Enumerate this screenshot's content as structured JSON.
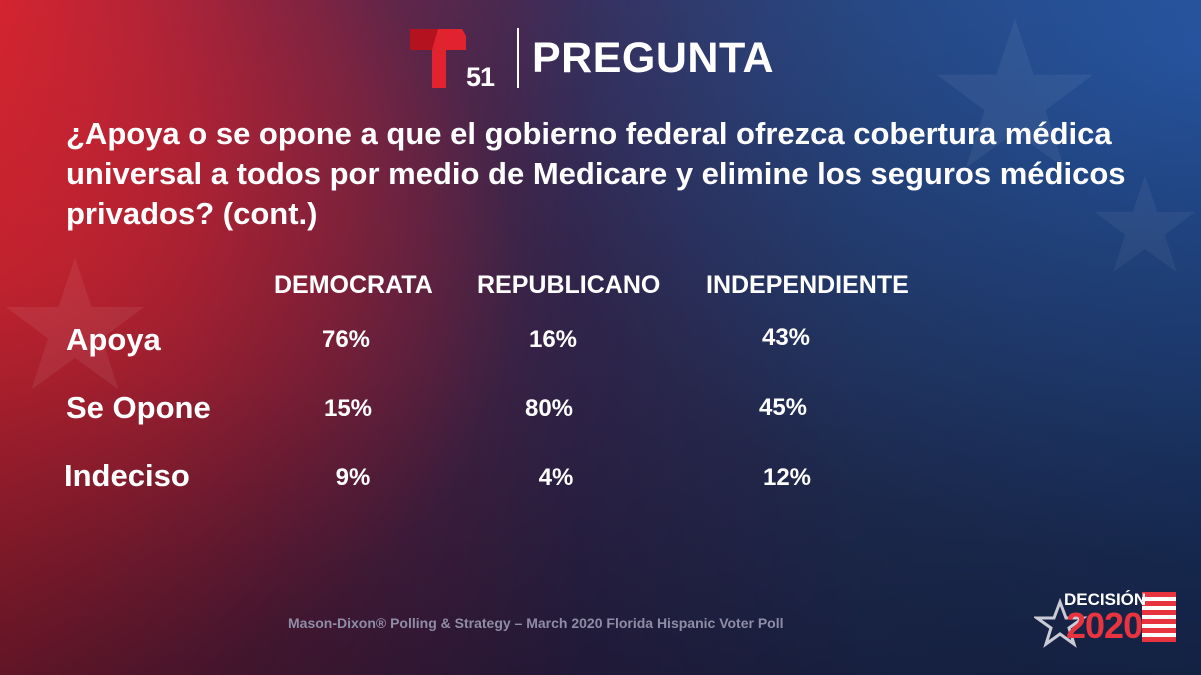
{
  "header": {
    "channel_number": "51",
    "title": "PREGUNTA"
  },
  "question": "¿Apoya o se opone a que el gobierno federal ofrezca cobertura médica universal a todos por medio de Medicare y elimine los seguros médicos privados? (cont.)",
  "table": {
    "columns": [
      "DEMOCRATA",
      "REPUBLICANO",
      "INDEPENDIENTE"
    ],
    "rows": [
      {
        "label": "Apoya",
        "values": [
          "76%",
          "16%",
          "43%"
        ]
      },
      {
        "label": "Se Opone",
        "values": [
          "15%",
          "80%",
          "45%"
        ]
      },
      {
        "label": "Indeciso",
        "values": [
          "9%",
          "4%",
          "12%"
        ]
      }
    ]
  },
  "source": "Mason-Dixon® Polling & Strategy – March 2020 Florida Hispanic Voter Poll",
  "badge": {
    "line1": "DECISIÓN",
    "line2": "2020"
  },
  "colors": {
    "logo_red": "#e0232f",
    "source_text": "#8f8da6"
  },
  "icons": [
    "telemundo-logo-icon",
    "decision-2020-star-icon"
  ]
}
